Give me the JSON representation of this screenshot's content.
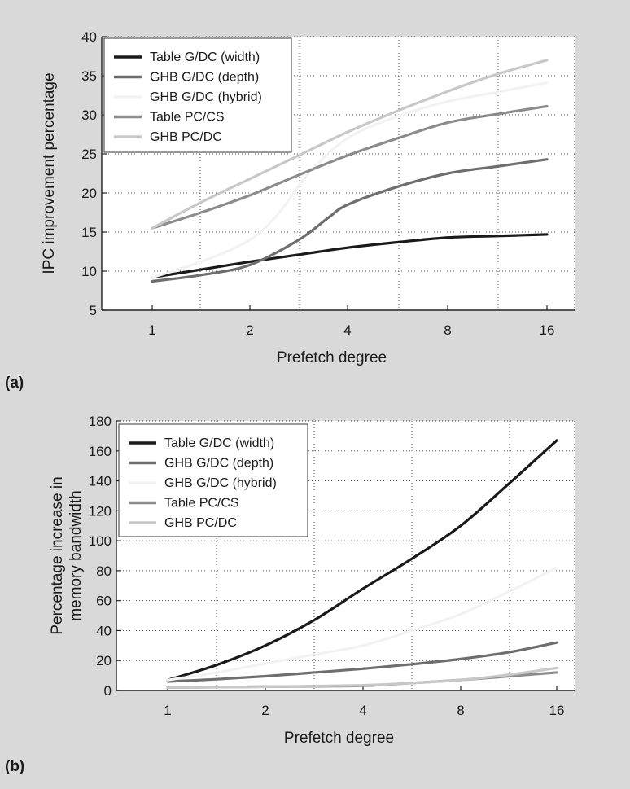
{
  "background_color": "#d9d9d9",
  "chart_data": [
    {
      "type": "line",
      "panel_label": "(a)",
      "xlabel": "Prefetch degree",
      "ylabel": "IPC improvement percentage",
      "categories": [
        "1",
        "2",
        "4",
        "8",
        "16"
      ],
      "ylim": [
        5,
        40
      ],
      "yticks": [
        5,
        10,
        15,
        20,
        25,
        30,
        35,
        40
      ],
      "grid": true,
      "legend_position": "top-left",
      "series": [
        {
          "name": "Table G/DC (width)",
          "color": "#1a1a1a",
          "x": [
            1,
            1.5,
            2,
            2.5,
            3,
            3.5,
            4,
            4.5,
            5
          ],
          "values": [
            9.2,
            10.2,
            11.2,
            12.1,
            13.0,
            13.7,
            14.3,
            14.5,
            14.7
          ]
        },
        {
          "name": "GHB G/DC (depth)",
          "color": "#6e6e6e",
          "x": [
            1,
            1.5,
            2,
            2.5,
            2.8,
            3,
            3.5,
            4,
            4.5,
            5
          ],
          "values": [
            8.7,
            9.5,
            10.8,
            14.0,
            16.8,
            18.5,
            20.8,
            22.5,
            23.4,
            24.3
          ]
        },
        {
          "name": "GHB G/DC (hybrid)",
          "color": "#f2f2f2",
          "x": [
            1,
            1.5,
            2,
            2.3,
            2.6,
            3,
            3.5,
            4,
            4.5,
            5
          ],
          "values": [
            9.2,
            11.2,
            14.0,
            17.5,
            22.5,
            27.0,
            29.8,
            31.7,
            32.9,
            34.1
          ]
        },
        {
          "name": "Table PC/CS",
          "color": "#8c8c8c",
          "x": [
            1,
            1.5,
            2,
            2.5,
            3,
            3.5,
            4,
            4.5,
            5
          ],
          "values": [
            15.5,
            17.5,
            19.7,
            22.3,
            24.8,
            27.0,
            29.0,
            30.1,
            31.1
          ]
        },
        {
          "name": "GHB PC/DC",
          "color": "#c8c8c8",
          "x": [
            1,
            1.5,
            2,
            2.5,
            3,
            3.5,
            4,
            4.5,
            5
          ],
          "values": [
            15.5,
            18.8,
            21.8,
            24.8,
            27.8,
            30.5,
            33.0,
            35.2,
            37.0
          ]
        }
      ]
    },
    {
      "type": "line",
      "panel_label": "(b)",
      "xlabel": "Prefetch degree",
      "ylabel_lines": [
        "Percentage increase in",
        "memory bandwidth"
      ],
      "categories": [
        "1",
        "2",
        "4",
        "8",
        "16"
      ],
      "ylim": [
        0,
        180
      ],
      "yticks": [
        0,
        20,
        40,
        60,
        80,
        100,
        120,
        140,
        160,
        180
      ],
      "grid": true,
      "legend_position": "top-left",
      "series": [
        {
          "name": "Table G/DC (width)",
          "color": "#1a1a1a",
          "x": [
            1,
            1.5,
            2,
            2.5,
            3,
            3.5,
            4,
            4.5,
            5
          ],
          "values": [
            7,
            17,
            30,
            47,
            68,
            88,
            110,
            138,
            167
          ]
        },
        {
          "name": "GHB G/DC (depth)",
          "color": "#6e6e6e",
          "x": [
            1,
            1.5,
            2,
            2.5,
            3,
            3.5,
            4,
            4.5,
            5
          ],
          "values": [
            6,
            7.5,
            9.5,
            12,
            14.5,
            17.5,
            21,
            25.5,
            32
          ]
        },
        {
          "name": "GHB G/DC (hybrid)",
          "color": "#f2f2f2",
          "x": [
            1,
            1.5,
            2,
            2.5,
            3,
            3.5,
            4,
            4.5,
            5
          ],
          "values": [
            7,
            12,
            18,
            24,
            30,
            40,
            51,
            66,
            82
          ]
        },
        {
          "name": "Table PC/CS",
          "color": "#8c8c8c",
          "x": [
            1,
            2,
            3,
            3.5,
            4,
            4.5,
            5
          ],
          "values": [
            2,
            2.5,
            3.2,
            5,
            7,
            9.5,
            12
          ]
        },
        {
          "name": "GHB PC/DC",
          "color": "#c8c8c8",
          "x": [
            1,
            2,
            3,
            3.5,
            4,
            4.5,
            5
          ],
          "values": [
            2,
            2.5,
            3.5,
            5,
            7,
            10.5,
            15
          ]
        }
      ]
    }
  ]
}
